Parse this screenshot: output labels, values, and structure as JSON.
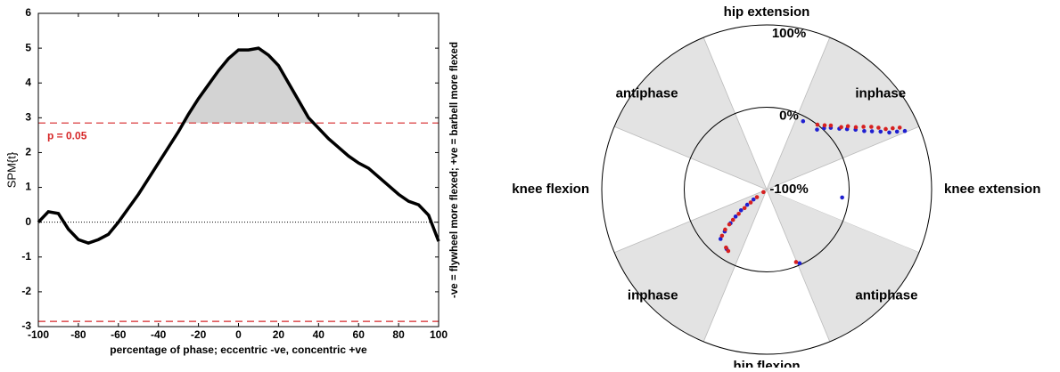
{
  "chart_data": [
    {
      "type": "line",
      "ylabel": "SPM{t}",
      "xlabel": "percentage of phase; eccentric -ve, concentric +ve",
      "right_label": "-ve = flywheel more flexed; +ve = barbell more flexed",
      "threshold_label": "p = 0.05",
      "thresholds": [
        2.85,
        -2.85
      ],
      "threshold_color": "#d62728",
      "fill_color": "#d3d3d3",
      "zero_line": true,
      "x": [
        -100,
        -95,
        -90,
        -85,
        -80,
        -75,
        -70,
        -65,
        -60,
        -55,
        -50,
        -45,
        -40,
        -35,
        -30,
        -25,
        -20,
        -15,
        -10,
        -5,
        0,
        5,
        10,
        15,
        20,
        25,
        30,
        35,
        40,
        45,
        50,
        55,
        60,
        65,
        70,
        75,
        80,
        85,
        90,
        95,
        100
      ],
      "series": [
        {
          "color": "#000000",
          "values": [
            0.0,
            0.3,
            0.25,
            -0.2,
            -0.5,
            -0.6,
            -0.5,
            -0.35,
            0.0,
            0.4,
            0.8,
            1.25,
            1.7,
            2.15,
            2.6,
            3.1,
            3.55,
            3.95,
            4.35,
            4.7,
            4.95,
            4.95,
            5.0,
            4.8,
            4.5,
            4.0,
            3.5,
            3.0,
            2.7,
            2.4,
            2.15,
            1.9,
            1.7,
            1.55,
            1.3,
            1.05,
            0.8,
            0.6,
            0.5,
            0.2,
            -0.55
          ]
        }
      ],
      "xlim": [
        -100,
        100
      ],
      "ylim": [
        -3,
        6
      ],
      "xticks": [
        -100,
        -80,
        -60,
        -40,
        -20,
        0,
        20,
        40,
        60,
        80,
        100
      ],
      "yticks": [
        -3,
        -2,
        -1,
        0,
        1,
        2,
        3,
        4,
        5,
        6
      ]
    },
    {
      "type": "polar",
      "rlim": [
        -100,
        100
      ],
      "rticks": [
        {
          "value": 100,
          "label": "100%"
        },
        {
          "value": 0,
          "label": "0%"
        },
        {
          "value": -100,
          "label": "-100%"
        }
      ],
      "shade_color": "#e3e3e3",
      "sectors": [
        {
          "label": "knee extension",
          "start": -22.5,
          "end": 22.5,
          "shaded": false
        },
        {
          "label": "inphase",
          "start": 22.5,
          "end": 67.5,
          "shaded": true
        },
        {
          "label": "hip extension",
          "start": 67.5,
          "end": 112.5,
          "shaded": false
        },
        {
          "label": "antiphase",
          "start": 112.5,
          "end": 157.5,
          "shaded": true
        },
        {
          "label": "knee flexion",
          "start": 157.5,
          "end": 202.5,
          "shaded": false
        },
        {
          "label": "inphase",
          "start": 202.5,
          "end": 247.5,
          "shaded": true
        },
        {
          "label": "hip flexion",
          "start": 247.5,
          "end": 292.5,
          "shaded": false
        },
        {
          "label": "antiphase",
          "start": 292.5,
          "end": 337.5,
          "shaded": true
        }
      ],
      "series": [
        {
          "color": "#1f1fd0",
          "theta": [
            50,
            47,
            44,
            40,
            37,
            34,
            31,
            29,
            27,
            25,
            24,
            23,
            62,
            354,
            217,
            218,
            219,
            221,
            223,
            225,
            227,
            236,
            294
          ],
          "r": [
            -5,
            2,
            8,
            15,
            22,
            30,
            38,
            46,
            55,
            64,
            73,
            82,
            -6,
            -8,
            -80,
            -70,
            -60,
            -50,
            -40,
            -28,
            -18,
            -13,
            -2
          ]
        },
        {
          "color": "#d62020",
          "theta": [
            52,
            48,
            45,
            40,
            38,
            35,
            33,
            31,
            29,
            27,
            26,
            25,
            218,
            218,
            219,
            220,
            221,
            222,
            223,
            224,
            226,
            235,
            238,
            292
          ],
          "r": [
            0,
            5,
            10,
            18,
            25,
            32,
            40,
            48,
            55,
            62,
            70,
            78,
            -95,
            -85,
            -75,
            -65,
            -55,
            -45,
            -38,
            -30,
            -22,
            -14,
            -12,
            -5
          ]
        }
      ]
    }
  ]
}
